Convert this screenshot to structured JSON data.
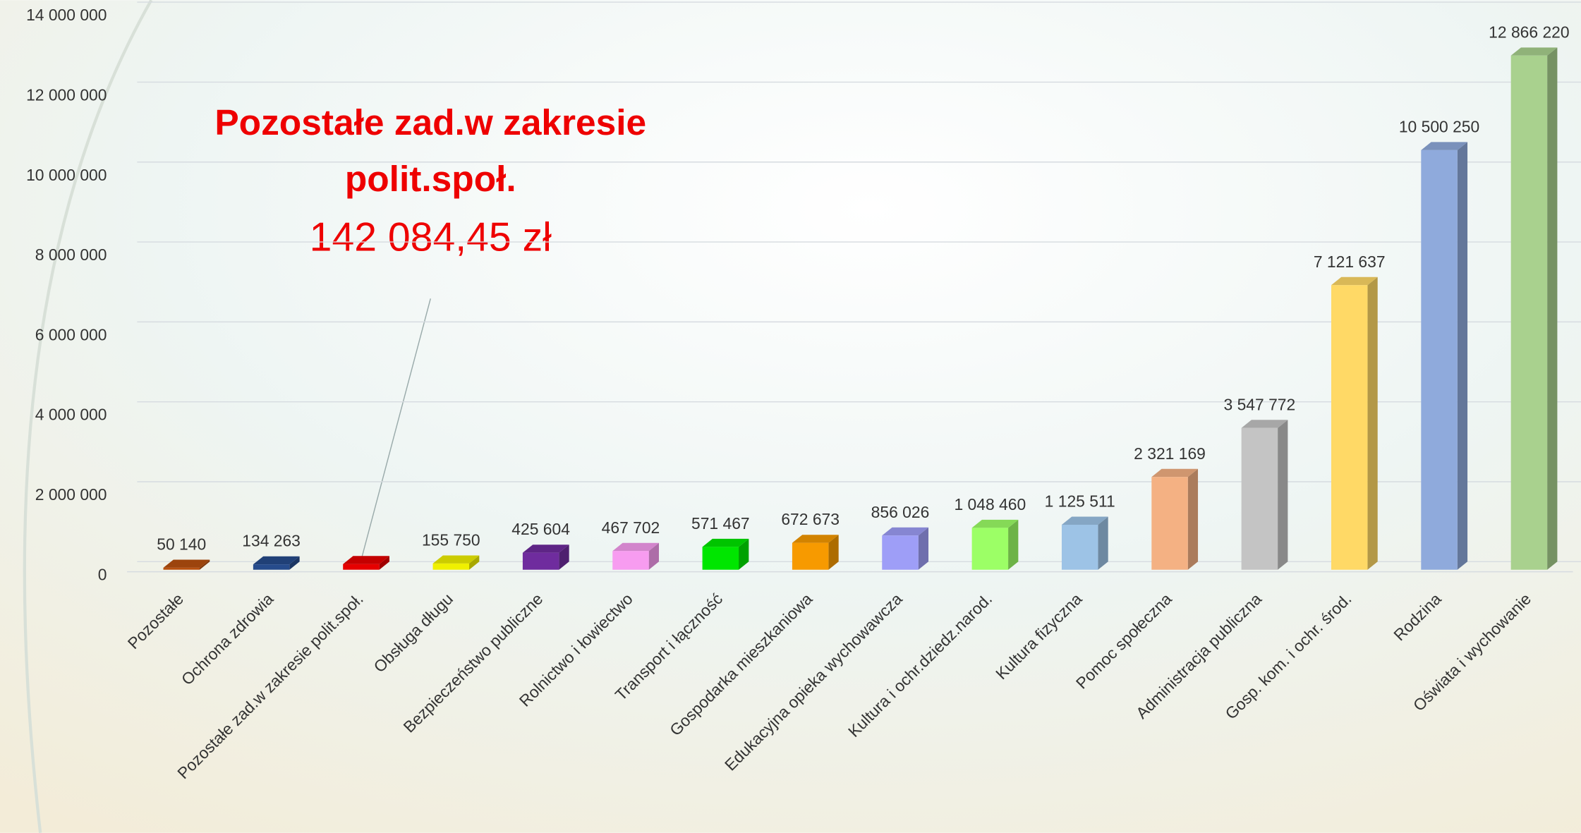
{
  "chart_data": {
    "type": "bar3d",
    "categories": [
      "Pozostałe",
      "Ochrona zdrowia",
      "Pozostałe zad.w zakresie polit.społ.",
      "Obsługa długu",
      "Bezpieczeństwo publiczne",
      "Rolnictwo i łowiectwo",
      "Transport i łączność",
      "Gospodarka mieszkaniowa",
      "Edukacyjna opieka wychowawcza",
      "Kultura i ochr.dziedz.narod.",
      "Kultura fizyczna",
      "Pomoc społeczna",
      "Administracja publiczna",
      "Gosp. kom. i ochr. środ.",
      "Rodzina",
      "Oświata i wychowanie"
    ],
    "values": [
      50140,
      134263,
      142084.45,
      155750,
      425604,
      467702,
      571467,
      672673,
      856026,
      1048460,
      1125511,
      2321169,
      3547772,
      7121637,
      10500250,
      12866220
    ],
    "value_labels": [
      "50 140",
      "134 263",
      null,
      "155 750",
      "425 604",
      "467 702",
      "571 467",
      "672 673",
      "856 026",
      "1 048 460",
      "1 125 511",
      "2 321 169",
      "3 547 772",
      "7 121 637",
      "10 500 250",
      "12 866 220"
    ],
    "colors": [
      "#b8500f",
      "#264b8c",
      "#e60000",
      "#f0f000",
      "#6f2c9e",
      "#f79cf0",
      "#00e600",
      "#f79a00",
      "#9e9ef7",
      "#9cff66",
      "#9dc3e6",
      "#f4b183",
      "#c4c4c4",
      "#ffd966",
      "#8faadc",
      "#a9d18e"
    ],
    "ylim": [
      0,
      14000000
    ],
    "yticks": [
      0,
      {
        "value": 2000000,
        "label": "2 000 000"
      },
      {
        "value": 4000000,
        "label": "4 000 000"
      },
      {
        "value": 6000000,
        "label": "6 000 000"
      },
      {
        "value": 8000000,
        "label": "8 000 000"
      },
      {
        "value": 10000000,
        "label": "10 000 000"
      },
      {
        "value": 12000000,
        "label": "12 000 000"
      },
      {
        "value": 14000000,
        "label": "14 000 000"
      }
    ],
    "grid": true,
    "annotation": {
      "lines": [
        "Pozostałe zad.w zakresie",
        "polit.społ."
      ],
      "value": "142 084,45 zł"
    }
  }
}
